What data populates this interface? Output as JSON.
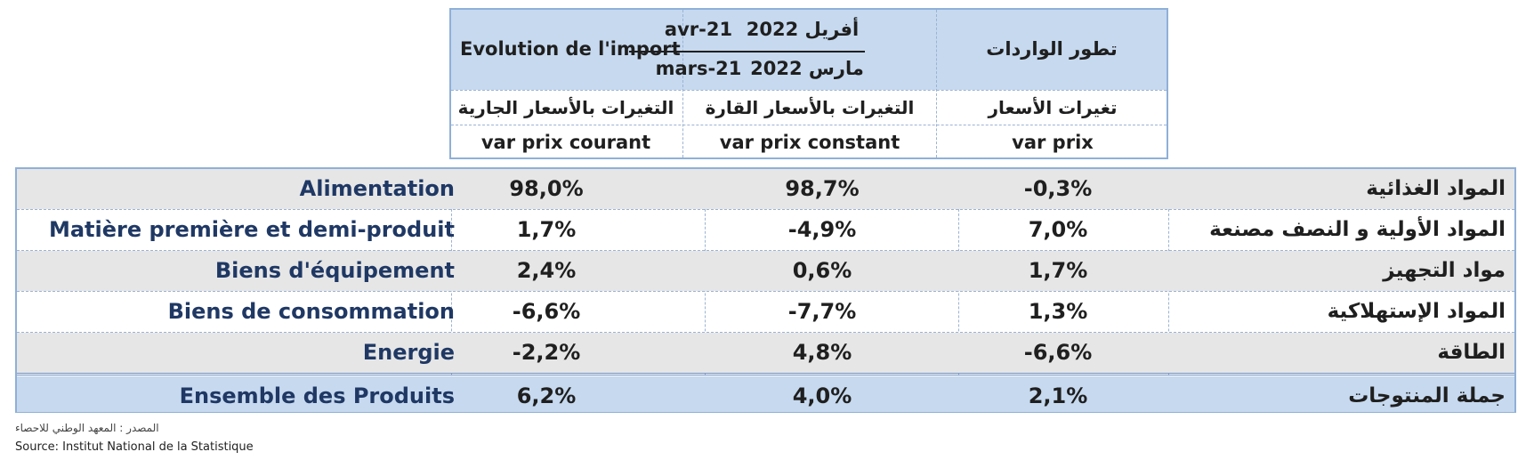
{
  "header": {
    "title_fr": "Evolution de l'import",
    "title_ar": "تطور الواردات",
    "period1_top": "avr-21",
    "period1_bottom": "mars-21",
    "period2_top": "أفريل 2022",
    "period2_bottom": "مارس 2022",
    "col1_ar": "التغيرات بالأسعار الجارية",
    "col2_ar": "التغيرات بالأسعار القارة",
    "col3_ar": "تغيرات  الأسعار",
    "col1_fr": "var prix courant",
    "col2_fr": "var prix constant",
    "col3_fr": "var prix"
  },
  "rows": [
    {
      "label_fr": "Alimentation",
      "label_ar": "المواد  الغذائية",
      "var_courant": "98,0%",
      "var_constant": "98,7%",
      "var_prix": "-0,3%"
    },
    {
      "label_fr": "Matière première et demi-produit",
      "label_ar": "المواد الأولية و النصف مصنعة",
      "var_courant": "1,7%",
      "var_constant": "-4,9%",
      "var_prix": "7,0%"
    },
    {
      "label_fr": "Biens d'équipement",
      "label_ar": "مواد التجهيز",
      "var_courant": "2,4%",
      "var_constant": "0,6%",
      "var_prix": "1,7%"
    },
    {
      "label_fr": "Biens de consommation",
      "label_ar": "المواد الإستهلاكية",
      "var_courant": "-6,6%",
      "var_constant": "-7,7%",
      "var_prix": "1,3%"
    },
    {
      "label_fr": "Energie",
      "label_ar": "الطاقة",
      "var_courant": "-2,2%",
      "var_constant": "4,8%",
      "var_prix": "-6,6%"
    }
  ],
  "total": {
    "label_fr": "Ensemble des Produits",
    "label_ar": "جملة المنتوجات",
    "var_courant": "6,2%",
    "var_constant": "4,0%",
    "var_prix": "2,1%"
  },
  "source": {
    "ar": "المصدر : المعهد الوطني للاحصاء",
    "fr": "Source: Institut National de la Statistique"
  }
}
